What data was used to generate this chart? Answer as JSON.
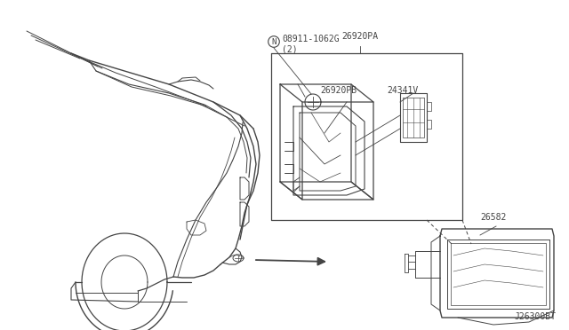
{
  "bg_color": "#ffffff",
  "line_color": "#444444",
  "diagram_code": "J26300BT",
  "figsize": [
    6.4,
    3.72
  ],
  "dpi": 100,
  "labels": {
    "N_part": "08911-1062G\n(2)",
    "p1": "26920PA",
    "p2": "26920PB",
    "p3": "24341V",
    "p4": "26582"
  }
}
